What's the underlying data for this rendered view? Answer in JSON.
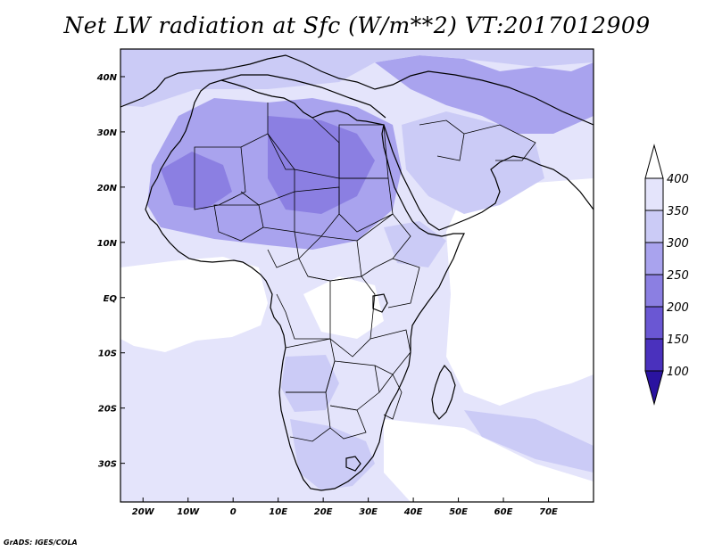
{
  "title": "Net LW radiation at Sfc (W/m**2) VT:2017012909",
  "footer": "GrADS: IGES/COLA",
  "map": {
    "lon_range": [
      -25,
      80
    ],
    "lat_range": [
      -37,
      45
    ],
    "lon_ticks": [
      {
        "v": -20,
        "label": "20W"
      },
      {
        "v": -10,
        "label": "10W"
      },
      {
        "v": 0,
        "label": "0"
      },
      {
        "v": 10,
        "label": "10E"
      },
      {
        "v": 20,
        "label": "20E"
      },
      {
        "v": 30,
        "label": "30E"
      },
      {
        "v": 40,
        "label": "40E"
      },
      {
        "v": 50,
        "label": "50E"
      },
      {
        "v": 60,
        "label": "60E"
      },
      {
        "v": 70,
        "label": "70E"
      }
    ],
    "lat_ticks": [
      {
        "v": 40,
        "label": "40N"
      },
      {
        "v": 30,
        "label": "30N"
      },
      {
        "v": 20,
        "label": "20N"
      },
      {
        "v": 10,
        "label": "10N"
      },
      {
        "v": 0,
        "label": "EQ"
      },
      {
        "v": -10,
        "label": "10S"
      },
      {
        "v": -20,
        "label": "20S"
      },
      {
        "v": -30,
        "label": "30S"
      }
    ]
  },
  "colorbar": {
    "labels": [
      "400",
      "350",
      "300",
      "250",
      "200",
      "150",
      "100"
    ],
    "colors": {
      "gt400": "#ffffff",
      "350_400": "#e4e4fb",
      "300_350": "#cbcbf6",
      "250_300": "#a9a3ee",
      "200_250": "#8b7fe2",
      "150_200": "#6a57d3",
      "100_150": "#4a31bd",
      "lt100": "#2a13a0"
    }
  }
}
